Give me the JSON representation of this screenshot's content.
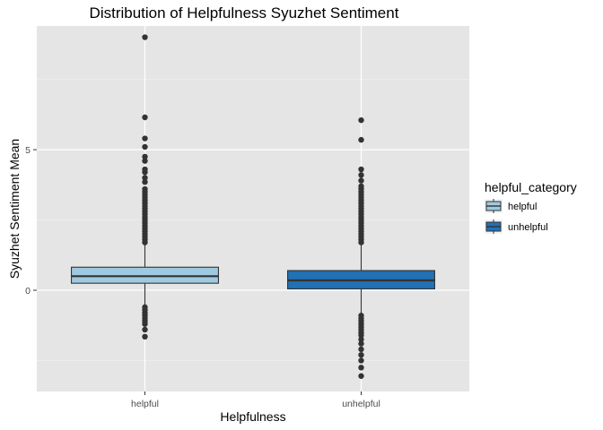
{
  "chart_data": {
    "type": "boxplot",
    "title": "Distribution of Helpfulness Syuzhet Sentiment",
    "xlabel": "Helpfulness",
    "ylabel": "Syuzhet Sentiment Mean",
    "categories": [
      "helpful",
      "unhelpful"
    ],
    "ylim": [
      -3.6,
      9.4
    ],
    "y_ticks": [
      0,
      5
    ],
    "y_tick_labels": [
      "0",
      "5"
    ],
    "grid": true,
    "legend": {
      "title": "helpful_category",
      "placement": "right",
      "entries": [
        {
          "label": "helpful",
          "color": "#9ecae1"
        },
        {
          "label": "unhelpful",
          "color": "#2171b5"
        }
      ]
    },
    "boxes": [
      {
        "category": "helpful",
        "color": "#9ecae1",
        "whisker_low": -0.6,
        "q1": 0.25,
        "median": 0.5,
        "q3": 0.82,
        "whisker_high": 1.65,
        "outliers": [
          9.0,
          6.15,
          5.4,
          5.1,
          4.75,
          4.6,
          4.3,
          4.2,
          4.0,
          3.85,
          3.6,
          3.5,
          3.4,
          3.3,
          3.2,
          3.1,
          3.0,
          2.9,
          2.8,
          2.7,
          2.6,
          2.5,
          2.4,
          2.3,
          2.2,
          2.1,
          2.0,
          1.9,
          1.8,
          1.7,
          -0.6,
          -0.7,
          -0.8,
          -0.9,
          -1.0,
          -1.1,
          -1.2,
          -1.4,
          -1.65
        ]
      },
      {
        "category": "unhelpful",
        "color": "#2171b5",
        "whisker_low": -0.9,
        "q1": 0.05,
        "median": 0.35,
        "q3": 0.7,
        "whisker_high": 1.6,
        "outliers": [
          6.05,
          5.35,
          4.3,
          4.1,
          3.9,
          3.7,
          3.6,
          3.5,
          3.4,
          3.3,
          3.2,
          3.1,
          3.0,
          2.9,
          2.8,
          2.7,
          2.6,
          2.5,
          2.4,
          2.3,
          2.2,
          2.1,
          2.0,
          1.9,
          1.8,
          1.7,
          -0.9,
          -1.0,
          -1.1,
          -1.2,
          -1.3,
          -1.4,
          -1.5,
          -1.6,
          -1.75,
          -1.9,
          -2.1,
          -2.3,
          -2.5,
          -2.75,
          -3.05
        ]
      }
    ]
  }
}
